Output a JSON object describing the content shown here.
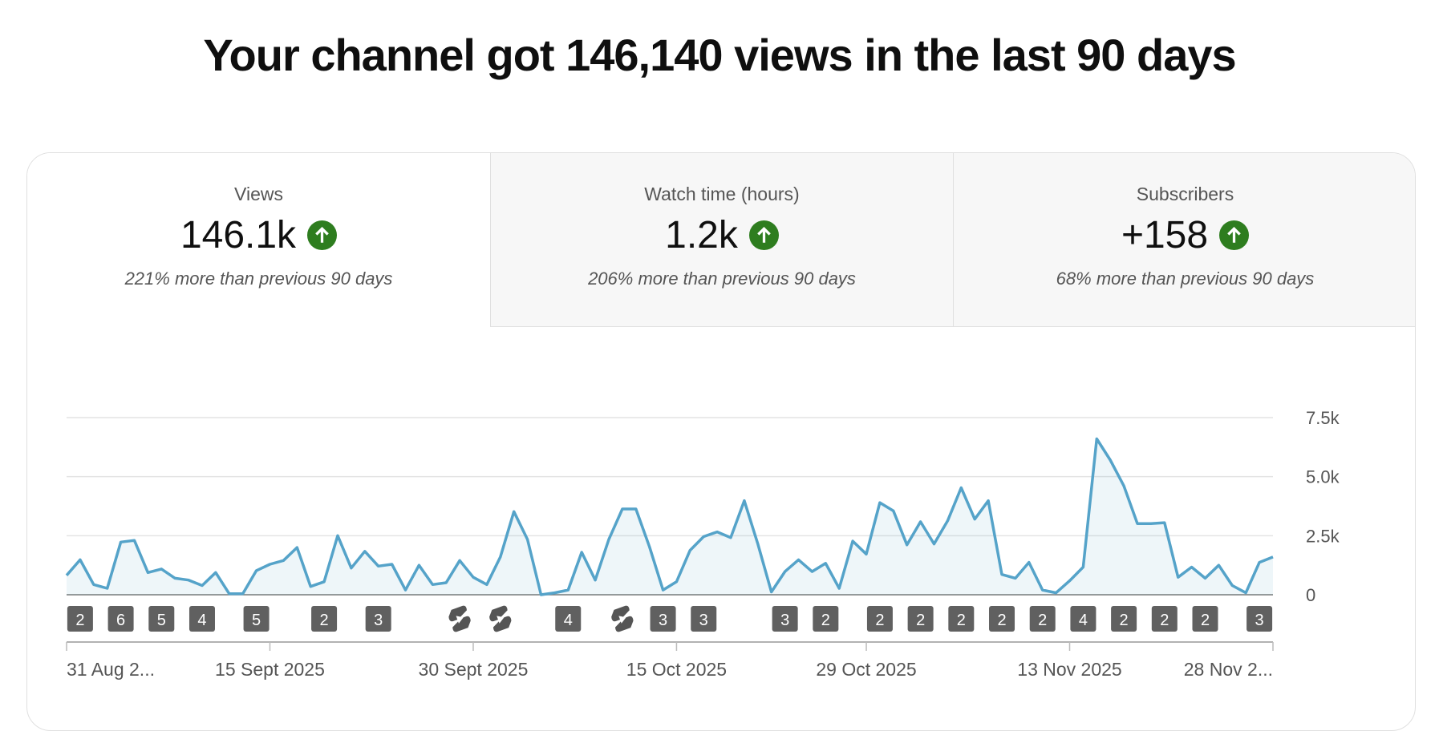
{
  "header": {
    "title": "Your channel got 146,140 views in the last 90 days"
  },
  "cards": [
    {
      "label": "Views",
      "value": "146.1k",
      "note": "221% more than previous 90 days"
    },
    {
      "label": "Watch time (hours)",
      "value": "1.2k",
      "note": "206% more than previous 90 days"
    },
    {
      "label": "Subscribers",
      "value": "+158",
      "note": "68% more than previous 90 days"
    }
  ],
  "chart_data": {
    "type": "line",
    "categories": [
      "31 Aug 2...",
      null,
      null,
      null,
      null,
      null,
      null,
      null,
      null,
      null,
      null,
      null,
      null,
      null,
      null,
      "15 Sept 2025",
      null,
      null,
      null,
      null,
      null,
      null,
      null,
      null,
      null,
      null,
      null,
      null,
      null,
      null,
      "30 Sept 2025",
      null,
      null,
      null,
      null,
      null,
      null,
      null,
      null,
      null,
      null,
      null,
      null,
      null,
      null,
      "15 Oct 2025",
      null,
      null,
      null,
      null,
      null,
      null,
      null,
      null,
      null,
      null,
      null,
      null,
      null,
      "29 Oct 2025",
      null,
      null,
      null,
      null,
      null,
      null,
      null,
      null,
      null,
      null,
      null,
      null,
      null,
      null,
      "13 Nov 2025",
      null,
      null,
      null,
      null,
      null,
      null,
      null,
      null,
      null,
      null,
      null,
      null,
      null,
      null,
      "28 Nov 2..."
    ],
    "series": [
      {
        "name": "Views",
        "color": "#55a3c9",
        "values": [
          820,
          1480,
          430,
          270,
          2230,
          2300,
          940,
          1090,
          700,
          620,
          390,
          940,
          40,
          40,
          1020,
          1290,
          1450,
          2000,
          350,
          550,
          2500,
          1130,
          1840,
          1210,
          1290,
          200,
          1250,
          430,
          510,
          1450,
          740,
          430,
          1600,
          3520,
          2340,
          0,
          80,
          200,
          1800,
          620,
          2340,
          3630,
          3630,
          2030,
          200,
          550,
          1880,
          2460,
          2660,
          2420,
          3980,
          2150,
          120,
          980,
          1480,
          980,
          1330,
          270,
          2270,
          1720,
          3900,
          3550,
          2110,
          3090,
          2150,
          3130,
          4530,
          3200,
          3980,
          860,
          700,
          1370,
          200,
          80,
          590,
          1170,
          6600,
          5700,
          4610,
          3010,
          3010,
          3050,
          740,
          1170,
          700,
          1250,
          390,
          80,
          1370,
          1600
        ]
      }
    ],
    "ylim": [
      0,
      7500
    ],
    "yticks": [
      0,
      {
        "value": 2500,
        "label": "2.5k"
      },
      {
        "value": 5000,
        "label": "5.0k"
      },
      {
        "value": 7500,
        "label": "7.5k"
      }
    ],
    "grid": true,
    "markers": [
      {
        "index": 1,
        "label": "2"
      },
      {
        "index": 4,
        "label": "6"
      },
      {
        "index": 7,
        "label": "5"
      },
      {
        "index": 10,
        "label": "4"
      },
      {
        "index": 14,
        "label": "5"
      },
      {
        "index": 19,
        "label": "2"
      },
      {
        "index": 23,
        "label": "3"
      },
      {
        "index": 37,
        "label": "4"
      },
      {
        "index": 44,
        "label": "3"
      },
      {
        "index": 47,
        "label": "3"
      },
      {
        "index": 53,
        "label": "3"
      },
      {
        "index": 56,
        "label": "2"
      },
      {
        "index": 60,
        "label": "2"
      },
      {
        "index": 63,
        "label": "2"
      },
      {
        "index": 66,
        "label": "2"
      },
      {
        "index": 69,
        "label": "2"
      },
      {
        "index": 72,
        "label": "2"
      },
      {
        "index": 75,
        "label": "4"
      },
      {
        "index": 78,
        "label": "2"
      },
      {
        "index": 81,
        "label": "2"
      },
      {
        "index": 84,
        "label": "2"
      },
      {
        "index": 88,
        "label": "3"
      }
    ],
    "shorts": [
      29,
      32,
      41
    ]
  }
}
